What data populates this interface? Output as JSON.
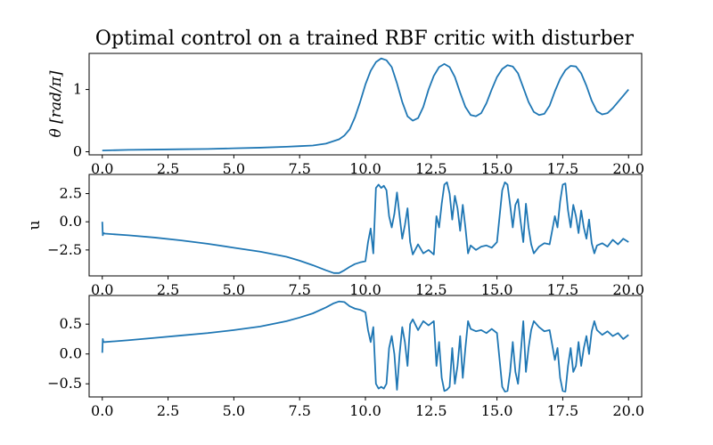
{
  "figure": {
    "title": "Optimal control on a trained RBF critic with disturber"
  },
  "chart_data": [
    {
      "type": "line",
      "ylabel": "θ [rad/π]",
      "xlim": [
        -0.5,
        20.5
      ],
      "ylim": [
        -0.05,
        1.58
      ],
      "xticks": [
        "0.0",
        "2.5",
        "5.0",
        "7.5",
        "10.0",
        "12.5",
        "15.0",
        "17.5",
        "20.0"
      ],
      "xtick_values": [
        0,
        2.5,
        5,
        7.5,
        10,
        12.5,
        15,
        17.5,
        20
      ],
      "yticks": [
        "0",
        "1"
      ],
      "ytick_values": [
        0,
        1
      ],
      "series": [
        {
          "x": [
            0,
            1,
            2,
            3,
            4,
            5,
            6,
            7,
            7.5,
            8,
            8.5,
            9,
            9.2,
            9.4,
            9.6,
            9.8,
            10.0,
            10.2,
            10.4,
            10.6,
            10.8,
            11.0,
            11.2,
            11.4,
            11.6,
            11.8,
            12.0,
            12.2,
            12.4,
            12.6,
            12.8,
            13.0,
            13.2,
            13.4,
            13.6,
            13.8,
            14.0,
            14.2,
            14.4,
            14.6,
            14.8,
            15.0,
            15.2,
            15.4,
            15.6,
            15.8,
            16.0,
            16.2,
            16.4,
            16.6,
            16.8,
            17.0,
            17.2,
            17.4,
            17.6,
            17.8,
            18.0,
            18.2,
            18.4,
            18.6,
            18.8,
            19.0,
            19.2,
            19.4,
            19.6,
            19.8,
            20.0
          ],
          "y": [
            0.02,
            0.03,
            0.035,
            0.04,
            0.045,
            0.055,
            0.065,
            0.08,
            0.09,
            0.1,
            0.13,
            0.2,
            0.26,
            0.36,
            0.55,
            0.8,
            1.08,
            1.3,
            1.44,
            1.5,
            1.47,
            1.36,
            1.1,
            0.8,
            0.57,
            0.5,
            0.54,
            0.72,
            1.0,
            1.22,
            1.36,
            1.41,
            1.36,
            1.2,
            0.95,
            0.72,
            0.59,
            0.57,
            0.62,
            0.78,
            1.0,
            1.2,
            1.33,
            1.39,
            1.37,
            1.26,
            1.03,
            0.8,
            0.64,
            0.59,
            0.61,
            0.74,
            0.97,
            1.17,
            1.31,
            1.38,
            1.37,
            1.26,
            1.06,
            0.82,
            0.65,
            0.6,
            0.62,
            0.7,
            0.8,
            0.9,
            1.0
          ]
        }
      ]
    },
    {
      "type": "line",
      "ylabel": "u",
      "xlim": [
        -0.5,
        20.5
      ],
      "ylim": [
        -4.8,
        4.2
      ],
      "xticks": [
        "0.0",
        "2.5",
        "5.0",
        "7.5",
        "10.0",
        "12.5",
        "15.0",
        "17.5",
        "20.0"
      ],
      "xtick_values": [
        0,
        2.5,
        5,
        7.5,
        10,
        12.5,
        15,
        17.5,
        20
      ],
      "yticks": [
        "2.5",
        "0.0",
        "−2.5"
      ],
      "ytick_values": [
        2.5,
        0,
        -2.5
      ],
      "series": [
        {
          "x": [
            0,
            0.02,
            0.04,
            0.1,
            1,
            2,
            3,
            4,
            5,
            6,
            7,
            7.5,
            8,
            8.5,
            8.8,
            9.0,
            9.2,
            9.4,
            9.6,
            9.8,
            10.0,
            10.1,
            10.2,
            10.3,
            10.4,
            10.5,
            10.6,
            10.7,
            10.8,
            10.9,
            11.0,
            11.1,
            11.2,
            11.3,
            11.4,
            11.5,
            11.6,
            11.7,
            11.8,
            12.0,
            12.2,
            12.4,
            12.6,
            12.7,
            12.8,
            12.9,
            13.0,
            13.1,
            13.2,
            13.3,
            13.4,
            13.5,
            13.6,
            13.7,
            13.8,
            13.9,
            14.0,
            14.2,
            14.4,
            14.6,
            14.8,
            15.0,
            15.1,
            15.2,
            15.3,
            15.4,
            15.5,
            15.6,
            15.7,
            15.8,
            15.9,
            16.0,
            16.1,
            16.2,
            16.3,
            16.4,
            16.6,
            16.8,
            17.0,
            17.2,
            17.3,
            17.4,
            17.5,
            17.6,
            17.7,
            17.8,
            17.9,
            18.0,
            18.1,
            18.2,
            18.3,
            18.4,
            18.5,
            18.6,
            18.7,
            18.8,
            19.0,
            19.2,
            19.4,
            19.6,
            19.8,
            20.0
          ],
          "y": [
            0.0,
            -1.2,
            -1.0,
            -1.05,
            -1.2,
            -1.4,
            -1.65,
            -1.95,
            -2.3,
            -2.65,
            -3.1,
            -3.45,
            -3.85,
            -4.3,
            -4.55,
            -4.55,
            -4.3,
            -4.0,
            -3.75,
            -3.6,
            -3.5,
            -1.8,
            -0.6,
            -2.8,
            3.0,
            3.3,
            3.0,
            3.2,
            2.8,
            0.5,
            -0.5,
            0.7,
            2.6,
            0.5,
            -1.5,
            -0.3,
            1.2,
            -1.8,
            -2.9,
            -2.0,
            -2.8,
            -2.5,
            -2.9,
            0.5,
            -0.5,
            1.6,
            3.3,
            3.5,
            2.5,
            0.2,
            2.3,
            1.2,
            -0.8,
            1.5,
            -0.5,
            -2.8,
            -2.1,
            -2.5,
            -2.2,
            -2.1,
            -2.3,
            -1.8,
            0.5,
            2.8,
            3.5,
            3.3,
            1.5,
            -0.5,
            1.5,
            2.0,
            0.0,
            -1.8,
            1.6,
            -0.5,
            -2.0,
            -2.8,
            -2.2,
            -1.9,
            -2.0,
            0.5,
            -0.5,
            1.8,
            3.3,
            3.4,
            1.0,
            -0.5,
            1.5,
            0.5,
            -1.0,
            1.0,
            -0.5,
            -1.5,
            0.2,
            -1.9,
            -2.8,
            -2.1,
            -1.9,
            -2.2,
            -1.6,
            -2.0,
            -1.5,
            -1.8
          ]
        }
      ]
    },
    {
      "type": "line",
      "ylabel": "",
      "xlim": [
        -0.5,
        20.5
      ],
      "ylim": [
        -0.72,
        0.98
      ],
      "xticks": [
        "0.0",
        "2.5",
        "5.0",
        "7.5",
        "10.0",
        "12.5",
        "15.0",
        "17.5",
        "20.0"
      ],
      "xtick_values": [
        0,
        2.5,
        5,
        7.5,
        10,
        12.5,
        15,
        17.5,
        20
      ],
      "yticks": [
        "0.5",
        "0.0",
        "−0.5"
      ],
      "ytick_values": [
        0.5,
        0,
        -0.5
      ],
      "series": [
        {
          "x": [
            0,
            0.02,
            0.04,
            0.1,
            1,
            2,
            3,
            4,
            5,
            6,
            7,
            7.5,
            8,
            8.5,
            8.8,
            9.0,
            9.2,
            9.4,
            9.6,
            9.8,
            10.0,
            10.1,
            10.2,
            10.3,
            10.4,
            10.5,
            10.6,
            10.7,
            10.8,
            10.9,
            11.0,
            11.1,
            11.2,
            11.3,
            11.4,
            11.5,
            11.6,
            11.7,
            11.8,
            12.0,
            12.2,
            12.4,
            12.6,
            12.7,
            12.8,
            12.9,
            13.0,
            13.1,
            13.2,
            13.3,
            13.4,
            13.5,
            13.6,
            13.7,
            13.8,
            13.9,
            14.0,
            14.2,
            14.4,
            14.6,
            14.8,
            15.0,
            15.1,
            15.2,
            15.3,
            15.4,
            15.5,
            15.6,
            15.7,
            15.8,
            15.9,
            16.0,
            16.1,
            16.2,
            16.3,
            16.4,
            16.6,
            16.8,
            17.0,
            17.2,
            17.3,
            17.4,
            17.5,
            17.6,
            17.7,
            17.8,
            17.9,
            18.0,
            18.1,
            18.2,
            18.3,
            18.4,
            18.5,
            18.6,
            18.7,
            18.8,
            19.0,
            19.2,
            19.4,
            19.6,
            19.8,
            20.0
          ],
          "y": [
            0.02,
            0.25,
            0.2,
            0.2,
            0.23,
            0.27,
            0.31,
            0.35,
            0.4,
            0.46,
            0.55,
            0.61,
            0.68,
            0.78,
            0.85,
            0.88,
            0.87,
            0.8,
            0.76,
            0.74,
            0.7,
            0.4,
            0.2,
            0.45,
            -0.5,
            -0.58,
            -0.55,
            -0.58,
            -0.5,
            0.1,
            0.3,
            0.0,
            -0.6,
            0.0,
            0.45,
            0.2,
            -0.2,
            0.5,
            0.58,
            0.4,
            0.55,
            0.48,
            0.55,
            -0.2,
            0.2,
            -0.4,
            -0.62,
            -0.6,
            -0.55,
            0.1,
            -0.5,
            -0.2,
            0.3,
            -0.4,
            0.1,
            0.55,
            0.42,
            0.38,
            0.4,
            0.35,
            0.42,
            0.35,
            -0.1,
            -0.55,
            -0.63,
            -0.62,
            -0.3,
            0.2,
            -0.3,
            -0.5,
            0.0,
            0.55,
            -0.3,
            0.1,
            0.4,
            0.55,
            0.45,
            0.38,
            0.4,
            -0.1,
            0.1,
            -0.4,
            -0.62,
            -0.63,
            -0.2,
            0.1,
            -0.3,
            -0.2,
            0.2,
            -0.2,
            0.1,
            0.3,
            0.0,
            0.38,
            0.55,
            0.4,
            0.32,
            0.38,
            0.3,
            0.35,
            0.25,
            0.32
          ]
        }
      ]
    }
  ]
}
